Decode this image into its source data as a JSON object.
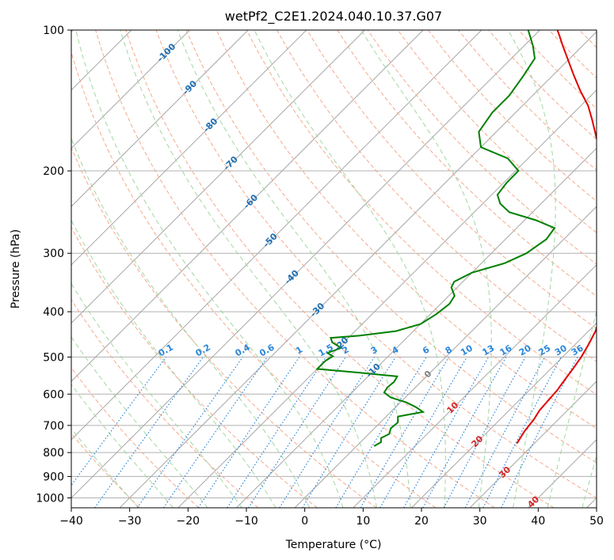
{
  "chart_data": {
    "type": "skew-t",
    "title": "wetPf2_C2E1.2024.040.10.37.G07",
    "xlabel": "Temperature (°C)",
    "ylabel": "Pressure (hPa)",
    "xlim": [
      -40,
      50
    ],
    "ylim_hpa": [
      1050,
      100
    ],
    "x_ticks": [
      -40,
      -30,
      -20,
      -10,
      0,
      10,
      20,
      30,
      40,
      50
    ],
    "x_tick_labels": [
      "−40",
      "−30",
      "−20",
      "−10",
      "0",
      "10",
      "20",
      "30",
      "40",
      "50"
    ],
    "y_ticks": [
      100,
      200,
      300,
      400,
      500,
      600,
      700,
      800,
      900,
      1000
    ],
    "y_tick_labels": [
      "100",
      "200",
      "300",
      "400",
      "500",
      "600",
      "700",
      "800",
      "900",
      "1000"
    ],
    "colors": {
      "temperature": "#e00000",
      "dewpoint": "#008000",
      "isotherm": "#a6a6a6",
      "dry_adiabat": "#f5a98d",
      "moist_adiabat": "#a3d6a3",
      "mixing_ratio": "#2b86d9",
      "grid": "#b0b0b0",
      "isotherm_label": "#1f6fb2",
      "mixing_ratio_label": "#2b86d9",
      "moist_label": "#d62728",
      "zero_label": "#808080"
    },
    "temperature_profile": [
      [
        765,
        27.0
      ],
      [
        720,
        26.2
      ],
      [
        680,
        25.8
      ],
      [
        650,
        25.2
      ],
      [
        620,
        25.0
      ],
      [
        590,
        24.8
      ],
      [
        560,
        24.3
      ],
      [
        530,
        23.8
      ],
      [
        500,
        23.2
      ],
      [
        470,
        22.3
      ],
      [
        440,
        21.2
      ],
      [
        410,
        19.5
      ],
      [
        380,
        17.6
      ],
      [
        350,
        15.4
      ],
      [
        320,
        12.8
      ],
      [
        300,
        11.0
      ],
      [
        280,
        8.8
      ],
      [
        260,
        6.6
      ],
      [
        245,
        4.8
      ],
      [
        230,
        2.6
      ],
      [
        215,
        -0.4
      ],
      [
        200,
        -4.0
      ],
      [
        185,
        -7.8
      ],
      [
        170,
        -11.8
      ],
      [
        155,
        -15.8
      ],
      [
        145,
        -18.8
      ],
      [
        135,
        -22.6
      ],
      [
        125,
        -26.4
      ],
      [
        115,
        -30.4
      ],
      [
        108,
        -33.4
      ],
      [
        103,
        -35.6
      ],
      [
        100,
        -37.0
      ]
    ],
    "dewpoint_profile": [
      [
        775,
        3.0
      ],
      [
        760,
        3.5
      ],
      [
        745,
        2.8
      ],
      [
        730,
        3.5
      ],
      [
        710,
        2.8
      ],
      [
        690,
        3.0
      ],
      [
        670,
        2.0
      ],
      [
        655,
        5.5
      ],
      [
        640,
        3.5
      ],
      [
        625,
        1.0
      ],
      [
        610,
        -2.5
      ],
      [
        595,
        -4.5
      ],
      [
        580,
        -4.8
      ],
      [
        565,
        -4.6
      ],
      [
        550,
        -5.0
      ],
      [
        540,
        -12.0
      ],
      [
        530,
        -20.0
      ],
      [
        510,
        -20.0
      ],
      [
        498,
        -19.5
      ],
      [
        490,
        -21.0
      ],
      [
        478,
        -19.5
      ],
      [
        465,
        -22.0
      ],
      [
        455,
        -23.0
      ],
      [
        450,
        -18.5
      ],
      [
        440,
        -13.0
      ],
      [
        425,
        -10.0
      ],
      [
        405,
        -9.0
      ],
      [
        385,
        -8.5
      ],
      [
        370,
        -9.0
      ],
      [
        355,
        -11.0
      ],
      [
        345,
        -11.5
      ],
      [
        330,
        -10.0
      ],
      [
        315,
        -6.0
      ],
      [
        300,
        -4.0
      ],
      [
        280,
        -3.0
      ],
      [
        265,
        -3.5
      ],
      [
        255,
        -8.0
      ],
      [
        245,
        -14.0
      ],
      [
        235,
        -17.0
      ],
      [
        225,
        -19.0
      ],
      [
        212,
        -19.5
      ],
      [
        200,
        -19.5
      ],
      [
        188,
        -23.5
      ],
      [
        178,
        -30.0
      ],
      [
        165,
        -33.0
      ],
      [
        150,
        -34.0
      ],
      [
        138,
        -34.0
      ],
      [
        125,
        -35.0
      ],
      [
        115,
        -36.0
      ],
      [
        108,
        -38.5
      ],
      [
        100,
        -42.0
      ]
    ],
    "isotherm_labels": [
      {
        "t": -100,
        "p": 112,
        "text": "-100"
      },
      {
        "t": -90,
        "p": 133,
        "text": "-90"
      },
      {
        "t": -80,
        "p": 160,
        "text": "-80"
      },
      {
        "t": -70,
        "p": 193,
        "text": "-70"
      },
      {
        "t": -60,
        "p": 233,
        "text": "-60"
      },
      {
        "t": -50,
        "p": 282,
        "text": "-50"
      },
      {
        "t": -40,
        "p": 338,
        "text": "-40"
      },
      {
        "t": -30,
        "p": 397,
        "text": "-30"
      },
      {
        "t": -20,
        "p": 470,
        "text": "-20"
      },
      {
        "t": -10,
        "p": 535,
        "text": "-10"
      },
      {
        "t": 0,
        "p": 545,
        "text": "0"
      },
      {
        "t": 10,
        "p": 643,
        "text": "10"
      },
      {
        "t": 20,
        "p": 759,
        "text": "20"
      },
      {
        "t": 30,
        "p": 883,
        "text": "30"
      },
      {
        "t": 40,
        "p": 1022,
        "text": "40"
      }
    ],
    "mixing_ratios": [
      {
        "w": 0.1,
        "text": "0.1"
      },
      {
        "w": 0.2,
        "text": "0.2"
      },
      {
        "w": 0.4,
        "text": "0.4"
      },
      {
        "w": 0.6,
        "text": "0.6"
      },
      {
        "w": 1.0,
        "text": "1"
      },
      {
        "w": 1.5,
        "text": "1.5"
      },
      {
        "w": 2.0,
        "text": "2"
      },
      {
        "w": 3.0,
        "text": "3"
      },
      {
        "w": 4.0,
        "text": "4"
      },
      {
        "w": 6.0,
        "text": "6"
      },
      {
        "w": 8.0,
        "text": "8"
      },
      {
        "w": 10.0,
        "text": "10"
      },
      {
        "w": 13.0,
        "text": "13"
      },
      {
        "w": 16.0,
        "text": "16"
      },
      {
        "w": 20.0,
        "text": "20"
      },
      {
        "w": 25.0,
        "text": "25"
      },
      {
        "w": 30.0,
        "text": "30"
      },
      {
        "w": 36.0,
        "text": "36"
      }
    ],
    "mixing_ratio_label_pressure": 500
  }
}
